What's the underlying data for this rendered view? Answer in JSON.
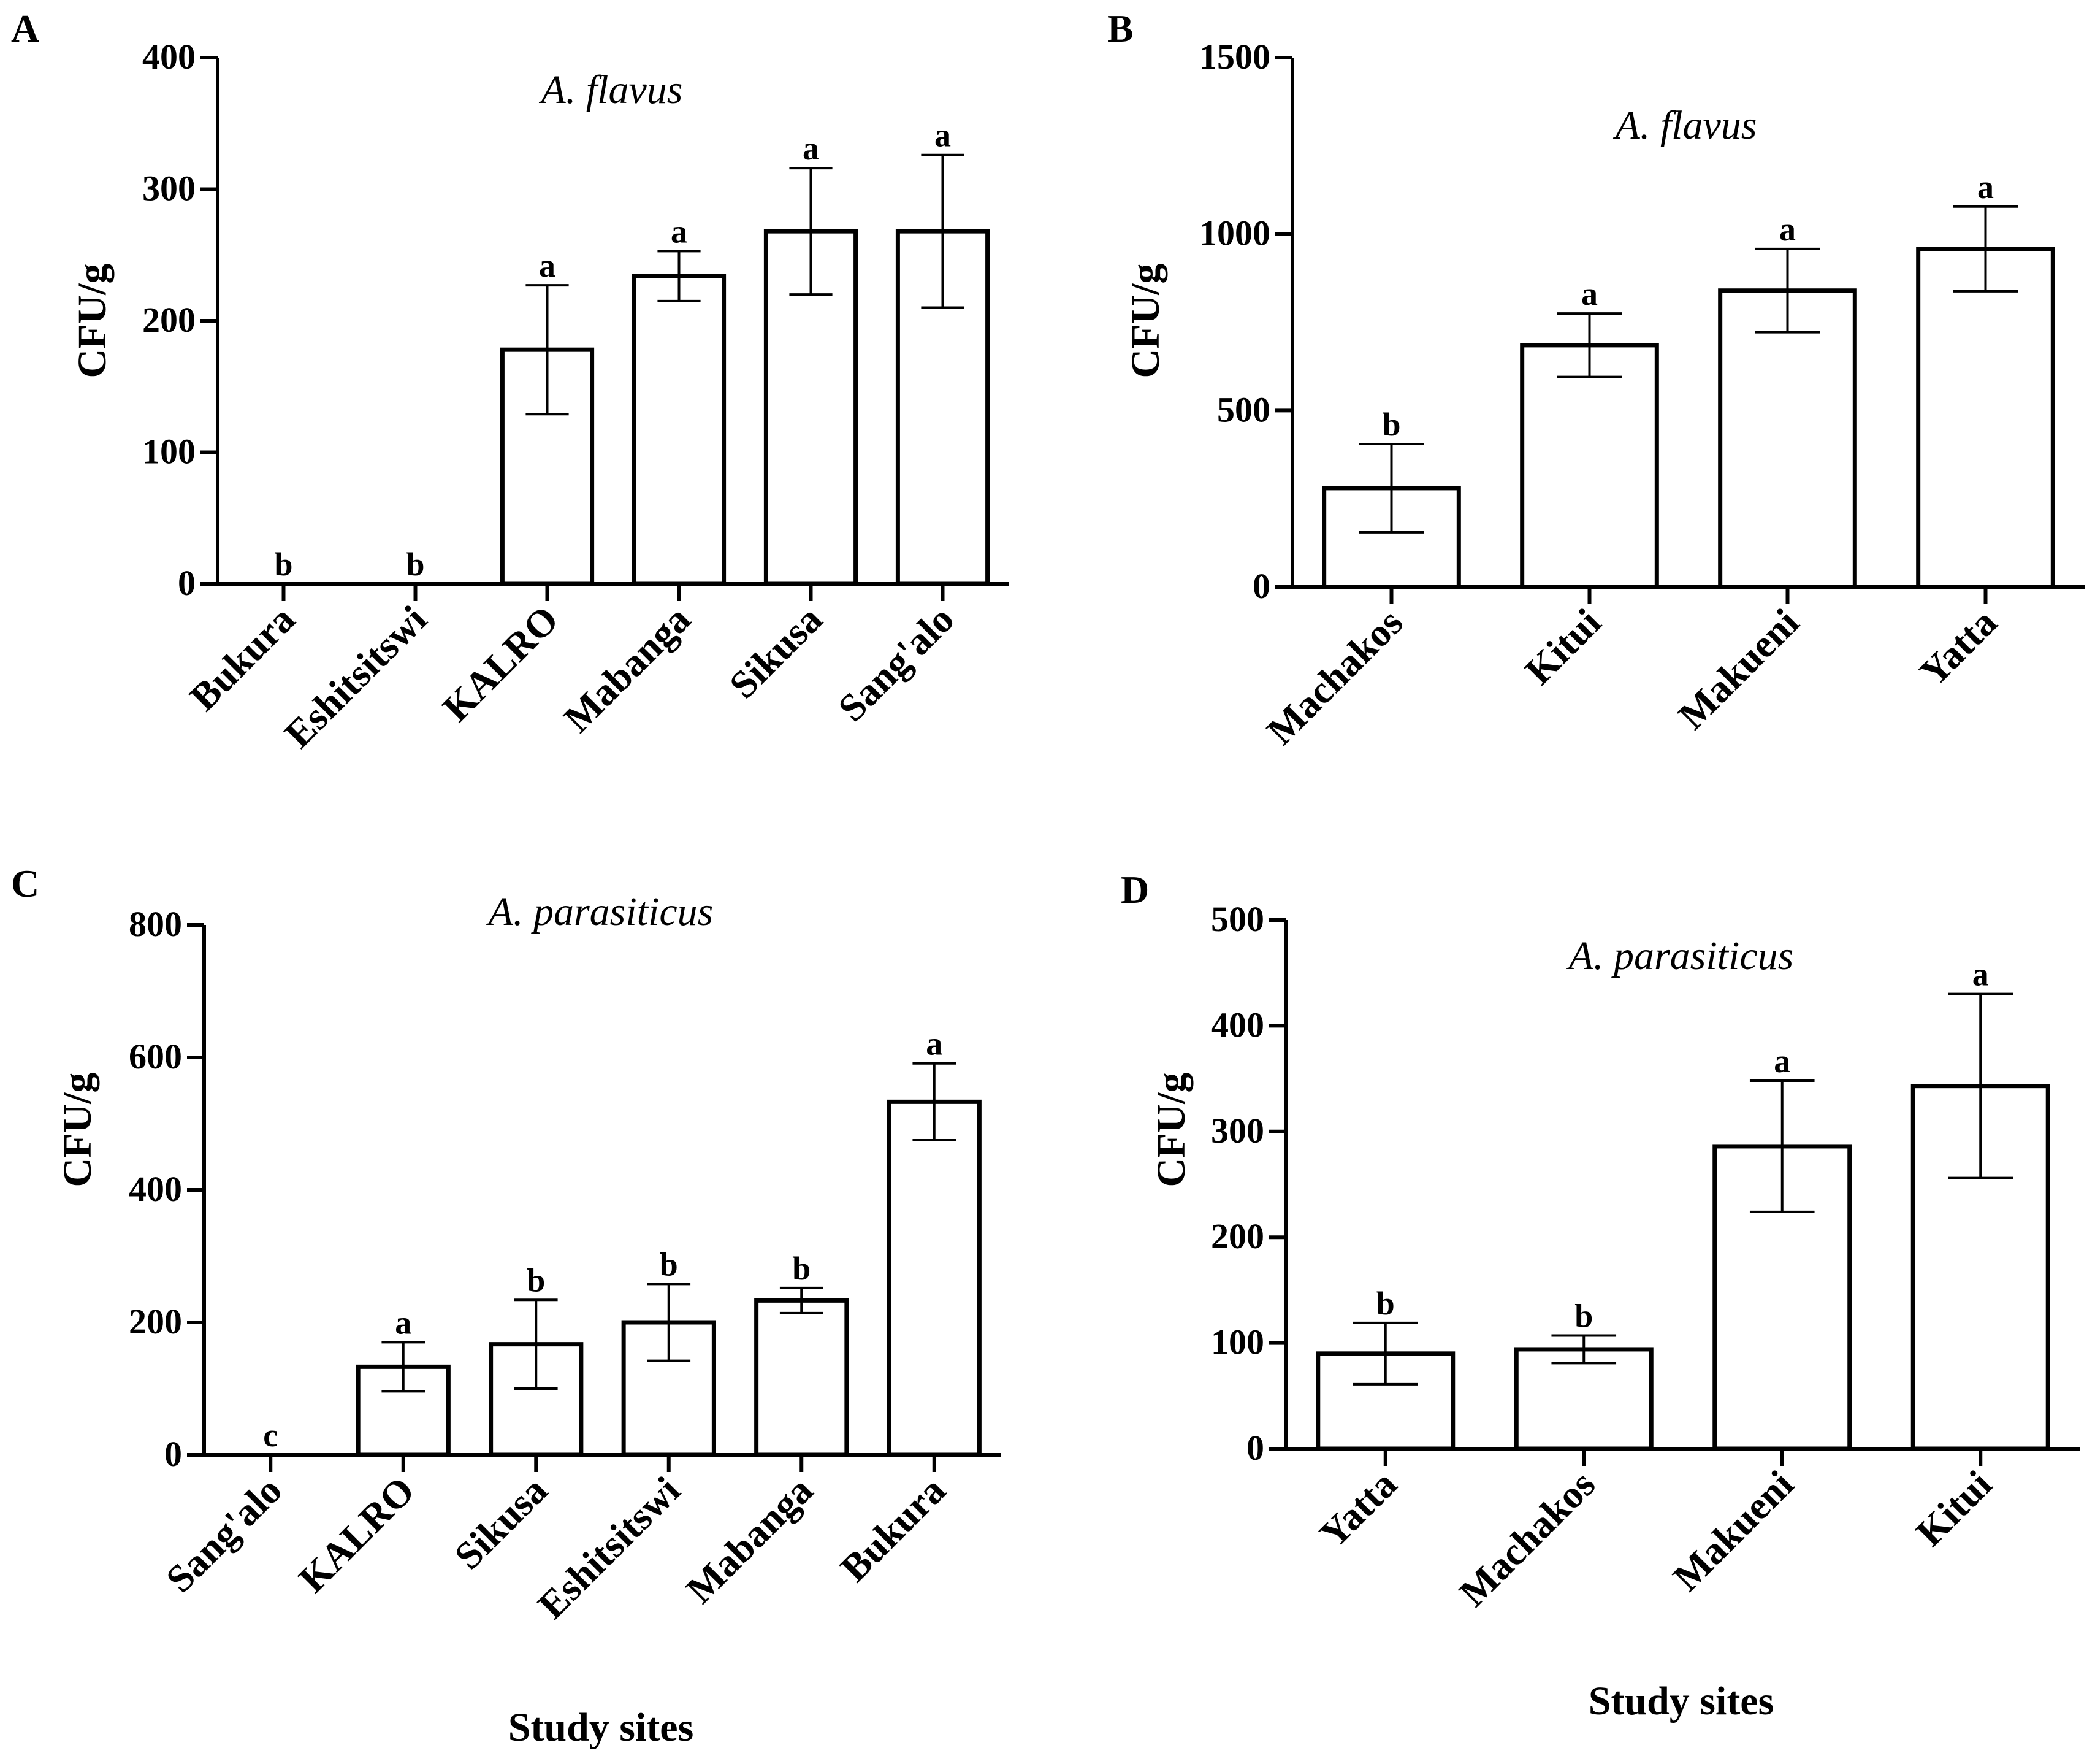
{
  "chart_data": [
    {
      "panel": "A",
      "type": "bar",
      "title": "A. flavus",
      "ylabel": "CFU/g",
      "xlabel": "",
      "ylim": [
        0,
        400
      ],
      "yticks": [
        0,
        100,
        200,
        300,
        400
      ],
      "categories": [
        "Bukura",
        "Eshitsitswi",
        "KALRO",
        "Mabanga",
        "Sikusa",
        "Sang'alo"
      ],
      "values": [
        0,
        0,
        178,
        234,
        268,
        268
      ],
      "errors": [
        0,
        0,
        49,
        19,
        48,
        58
      ],
      "significance": [
        "b",
        "b",
        "a",
        "a",
        "a",
        "a"
      ]
    },
    {
      "panel": "B",
      "type": "bar",
      "title": "A. flavus",
      "ylabel": "CFU/g",
      "xlabel": "",
      "ylim": [
        0,
        1500
      ],
      "yticks": [
        0,
        500,
        1000,
        1500
      ],
      "categories": [
        "Machakos",
        "Kitui",
        "Makueni",
        "Yatta"
      ],
      "values": [
        280,
        685,
        840,
        958
      ],
      "errors": [
        125,
        90,
        118,
        120
      ],
      "significance": [
        "b",
        "a",
        "a",
        "a"
      ]
    },
    {
      "panel": "C",
      "type": "bar",
      "title": "A. parasiticus",
      "ylabel": "CFU/g",
      "xlabel": "Study sites",
      "ylim": [
        0,
        800
      ],
      "yticks": [
        0,
        200,
        400,
        600,
        800
      ],
      "categories": [
        "Sang'alo",
        "KALRO",
        "Sikusa",
        "Eshitsitswi",
        "Mabanga",
        "Bukura"
      ],
      "values": [
        0,
        133,
        167,
        200,
        233,
        533
      ],
      "errors": [
        0,
        37,
        67,
        58,
        19,
        58
      ],
      "significance": [
        "c",
        "a",
        "b",
        "b",
        "b",
        "a"
      ]
    },
    {
      "panel": "D",
      "type": "bar",
      "title": "A. parasiticus",
      "ylabel": "CFU/g",
      "xlabel": "Study sites",
      "ylim": [
        0,
        500
      ],
      "yticks": [
        0,
        100,
        200,
        300,
        400,
        500
      ],
      "categories": [
        "Yatta",
        "Machakos",
        "Makueni",
        "Kitui"
      ],
      "values": [
        90,
        94,
        286,
        343
      ],
      "errors": [
        29,
        13,
        62,
        87
      ],
      "significance": [
        "b",
        "b",
        "a",
        "a"
      ]
    }
  ]
}
